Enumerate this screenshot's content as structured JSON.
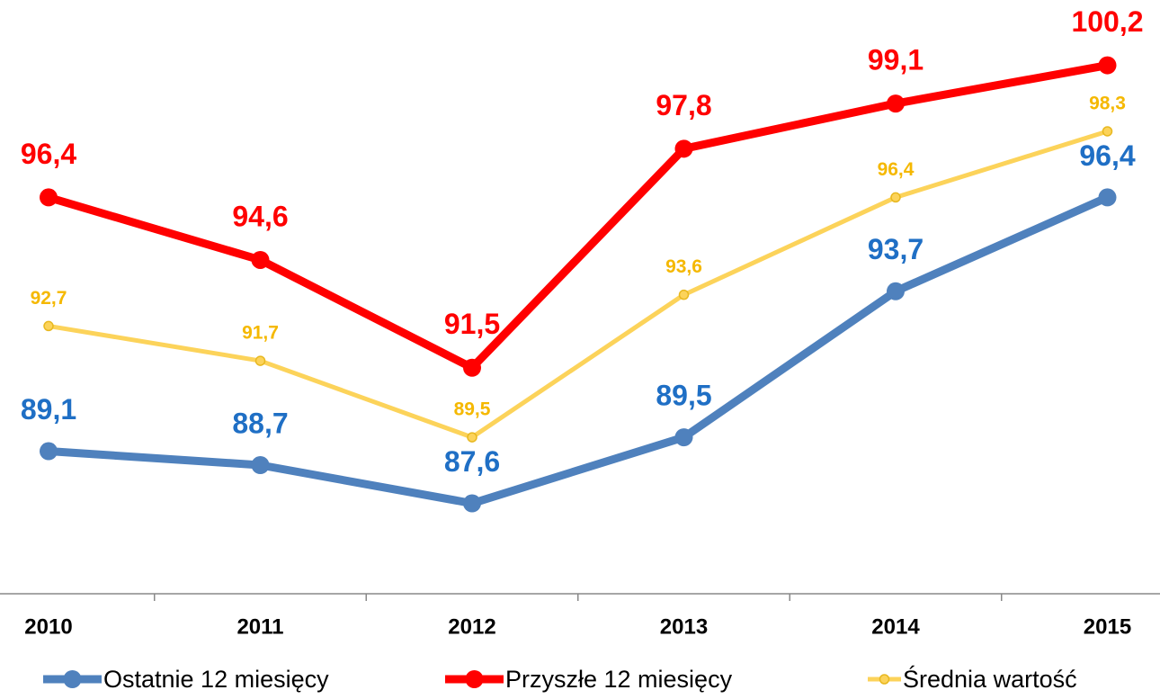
{
  "chart_data": {
    "type": "line",
    "categories": [
      "2010",
      "2011",
      "2012",
      "2013",
      "2014",
      "2015"
    ],
    "series": [
      {
        "name": "Ostatnie 12 miesięcy",
        "color": "#4f81bd",
        "label_color": "#1f6fc5",
        "values": [
          89.1,
          88.7,
          87.6,
          89.5,
          93.7,
          96.4
        ],
        "value_labels": [
          "89,1",
          "88,7",
          "87,6",
          "89,5",
          "93,7",
          "96,4"
        ]
      },
      {
        "name": "Przyszłe 12 miesięcy",
        "color": "#ff0000",
        "label_color": "#ff0000",
        "values": [
          96.4,
          94.6,
          91.5,
          97.8,
          99.1,
          100.2
        ],
        "value_labels": [
          "96,4",
          "94,6",
          "91,5",
          "97,8",
          "99,1",
          "100,2"
        ]
      },
      {
        "name": "Średnia wartość",
        "color": "#fcd35a",
        "label_color": "#f5b800",
        "values": [
          92.7,
          91.7,
          89.5,
          93.6,
          96.4,
          98.3
        ],
        "value_labels": [
          "92,7",
          "91,7",
          "89,5",
          "93,6",
          "96,4",
          "98,3"
        ]
      }
    ],
    "ylim": [
      85,
      102
    ],
    "legend": "bottom"
  }
}
